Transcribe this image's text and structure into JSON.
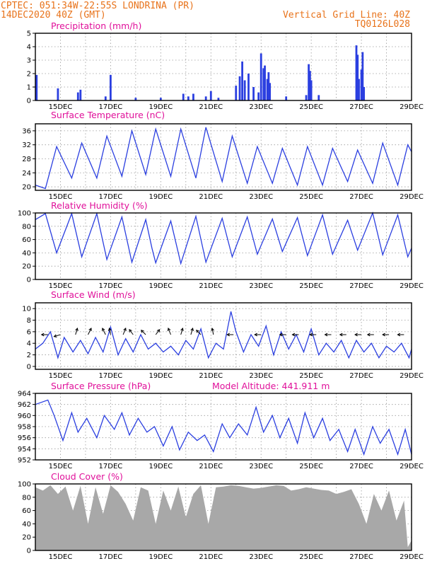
{
  "header": {
    "line1": "CPTEC:   051:34W-22:55S   LONDRINA (PR)",
    "line2_left": "14DEC2020 40Z (GMT)",
    "line2_right": "Vertical Grid Line: 40Z",
    "line3_right": "TQ0126L028"
  },
  "colors": {
    "series": "#2b3fe0",
    "cloud": "#a8a8a8",
    "header": "#e8731b",
    "title": "#e0109a"
  },
  "chart_data": [
    {
      "type": "bar",
      "title": "Precipitation (mm/h)",
      "x_ticks": [
        "15DEC",
        "17DEC",
        "19DEC",
        "21DEC",
        "23DEC",
        "25DEC",
        "27DEC",
        "29DEC"
      ],
      "xlim_days": [
        14.0,
        29.0
      ],
      "ylim": [
        0,
        5
      ],
      "y_ticks": [
        0,
        1,
        2,
        3,
        4,
        5
      ],
      "x": [
        14.05,
        14.9,
        15.7,
        15.8,
        16.8,
        17.0,
        18.0,
        19.0,
        19.9,
        20.1,
        20.3,
        20.8,
        21.0,
        21.3,
        22.0,
        22.15,
        22.25,
        22.35,
        22.5,
        22.7,
        22.9,
        23.0,
        23.1,
        23.15,
        23.25,
        23.3,
        23.35,
        24.0,
        24.8,
        24.9,
        24.95,
        25.0,
        25.3,
        26.8,
        26.85,
        26.9,
        27.0,
        27.05,
        27.1
      ],
      "values": [
        1.9,
        0.9,
        0.6,
        0.8,
        0.3,
        1.9,
        0.2,
        0.2,
        0.5,
        0.3,
        0.5,
        0.3,
        0.7,
        0.2,
        1.1,
        1.8,
        2.9,
        1.5,
        2.0,
        1.0,
        0.6,
        3.5,
        2.4,
        2.6,
        1.6,
        2.1,
        1.3,
        0.3,
        0.4,
        2.7,
        2.2,
        1.5,
        0.4,
        4.1,
        3.4,
        1.6,
        2.3,
        3.6,
        1.0
      ]
    },
    {
      "type": "line",
      "title": "Surface Temperature (nC)",
      "x_ticks": [
        "15DEC",
        "17DEC",
        "19DEC",
        "21DEC",
        "23DEC",
        "25DEC",
        "27DEC",
        "29DEC"
      ],
      "ylim": [
        19,
        38
      ],
      "y_ticks": [
        20,
        24,
        28,
        32,
        36
      ],
      "x": [
        14.0,
        14.4,
        14.85,
        15.45,
        15.85,
        16.45,
        16.85,
        17.45,
        17.85,
        18.4,
        18.8,
        19.4,
        19.8,
        20.4,
        20.8,
        21.45,
        21.85,
        22.45,
        22.85,
        23.45,
        23.85,
        24.45,
        24.85,
        25.45,
        25.85,
        26.45,
        26.85,
        27.45,
        27.85,
        28.45,
        28.85,
        29.0
      ],
      "values": [
        20.5,
        19.5,
        31.5,
        22.5,
        32.5,
        22.5,
        34.5,
        23.0,
        36.0,
        23.5,
        36.5,
        23.0,
        36.5,
        22.5,
        37.0,
        21.5,
        34.5,
        21.0,
        31.5,
        21.0,
        31.0,
        20.5,
        31.5,
        20.5,
        31.0,
        21.5,
        30.5,
        21.0,
        32.5,
        20.5,
        32.0,
        30.0
      ]
    },
    {
      "type": "line",
      "title": "Relative Humidity (%)",
      "x_ticks": [
        "15DEC",
        "17DEC",
        "19DEC",
        "21DEC",
        "23DEC",
        "25DEC",
        "27DEC",
        "29DEC"
      ],
      "ylim": [
        0,
        100
      ],
      "y_ticks": [
        0,
        20,
        40,
        60,
        80,
        100
      ],
      "x": [
        14.0,
        14.4,
        14.85,
        15.45,
        15.85,
        16.45,
        16.85,
        17.45,
        17.85,
        18.4,
        18.65,
        18.8,
        19.4,
        19.8,
        20.4,
        20.8,
        21.45,
        21.85,
        22.45,
        22.85,
        23.45,
        23.85,
        24.45,
        24.85,
        25.45,
        25.85,
        26.45,
        26.85,
        27.45,
        27.85,
        28.45,
        28.85,
        29.0
      ],
      "values": [
        90,
        99,
        40,
        99,
        34,
        99,
        30,
        94,
        26,
        90,
        47,
        25,
        88,
        24,
        95,
        26,
        92,
        34,
        94,
        38,
        91,
        42,
        93,
        36,
        97,
        38,
        89,
        44,
        100,
        37,
        97,
        34,
        47
      ]
    },
    {
      "type": "line",
      "title": "Surface Wind (m/s)",
      "x_ticks": [
        "15DEC",
        "17DEC",
        "19DEC",
        "21DEC",
        "23DEC",
        "25DEC",
        "27DEC",
        "29DEC"
      ],
      "ylim": [
        -0.5,
        11
      ],
      "y_ticks": [
        0,
        2,
        4,
        6,
        8,
        10
      ],
      "x": [
        14.0,
        14.3,
        14.6,
        14.9,
        15.15,
        15.5,
        15.8,
        16.1,
        16.4,
        16.7,
        17.0,
        17.3,
        17.6,
        17.9,
        18.2,
        18.5,
        18.8,
        19.1,
        19.4,
        19.7,
        20.0,
        20.3,
        20.6,
        20.9,
        21.2,
        21.5,
        21.8,
        22.0,
        22.3,
        22.6,
        22.9,
        23.2,
        23.5,
        23.8,
        24.1,
        24.4,
        24.7,
        25.0,
        25.3,
        25.6,
        25.9,
        26.2,
        26.5,
        26.8,
        27.1,
        27.4,
        27.7,
        28.0,
        28.3,
        28.6,
        28.9,
        29.0
      ],
      "values": [
        3.0,
        4.0,
        6.0,
        1.5,
        5.0,
        2.5,
        4.5,
        2.2,
        5.0,
        2.5,
        6.8,
        2.0,
        4.8,
        2.5,
        5.5,
        3.0,
        4.0,
        2.5,
        3.5,
        2.0,
        4.5,
        3.0,
        6.5,
        1.5,
        4.0,
        3.0,
        9.5,
        6.0,
        2.5,
        5.5,
        3.5,
        7.0,
        2.0,
        6.0,
        3.0,
        5.5,
        2.5,
        6.5,
        2.0,
        4.0,
        2.5,
        4.5,
        1.5,
        4.5,
        2.5,
        4.0,
        1.5,
        3.5,
        2.5,
        4.0,
        1.5,
        3.0
      ]
    },
    {
      "type": "line",
      "title": "Surface Pressure (hPa)",
      "annotation": "Model Altitude: 441.911 m",
      "x_ticks": [
        "15DEC",
        "17DEC",
        "19DEC",
        "21DEC",
        "23DEC",
        "25DEC",
        "27DEC",
        "29DEC"
      ],
      "ylim": [
        952,
        964
      ],
      "y_ticks": [
        952,
        954,
        956,
        958,
        960,
        962,
        964
      ],
      "x": [
        14.0,
        14.5,
        14.75,
        15.1,
        15.45,
        15.7,
        16.05,
        16.45,
        16.75,
        17.15,
        17.45,
        17.75,
        18.1,
        18.45,
        18.75,
        19.1,
        19.45,
        19.75,
        20.1,
        20.45,
        20.75,
        21.1,
        21.45,
        21.75,
        22.1,
        22.45,
        22.8,
        23.1,
        23.45,
        23.75,
        24.1,
        24.45,
        24.75,
        25.1,
        25.45,
        25.75,
        26.1,
        26.45,
        26.75,
        27.1,
        27.45,
        27.75,
        28.1,
        28.45,
        28.75,
        29.0
      ],
      "values": [
        962.0,
        962.8,
        960.0,
        955.5,
        960.5,
        957.0,
        959.5,
        956.0,
        960.0,
        957.5,
        960.5,
        956.5,
        959.5,
        957.0,
        958.0,
        954.5,
        958.0,
        953.8,
        957.0,
        955.5,
        956.5,
        953.5,
        958.5,
        956.0,
        958.5,
        956.5,
        961.5,
        957.0,
        960.0,
        956.0,
        959.5,
        955.0,
        960.5,
        956.0,
        959.5,
        955.5,
        957.5,
        953.5,
        957.5,
        953.0,
        958.0,
        955.0,
        957.5,
        953.0,
        957.5,
        953.0
      ]
    },
    {
      "type": "area",
      "title": "Cloud Cover (%)",
      "x_ticks": [
        "15DEC",
        "17DEC",
        "19DEC",
        "21DEC",
        "23DEC",
        "25DEC",
        "27DEC",
        "29DEC"
      ],
      "ylim": [
        0,
        100
      ],
      "y_ticks": [
        0,
        20,
        40,
        60,
        80,
        100
      ],
      "x": [
        14.0,
        14.3,
        14.6,
        14.9,
        15.2,
        15.5,
        15.8,
        16.1,
        16.4,
        16.7,
        17.0,
        17.3,
        17.6,
        17.9,
        18.2,
        18.5,
        18.8,
        19.1,
        19.4,
        19.7,
        20.0,
        20.3,
        20.6,
        20.9,
        21.2,
        21.5,
        21.8,
        22.1,
        22.4,
        22.7,
        23.0,
        23.3,
        23.6,
        23.9,
        24.2,
        24.5,
        24.8,
        25.1,
        25.4,
        25.7,
        26.0,
        26.3,
        26.6,
        26.9,
        27.2,
        27.5,
        27.8,
        28.1,
        28.4,
        28.7,
        28.85,
        29.0
      ],
      "values": [
        95,
        90,
        98,
        85,
        96,
        60,
        97,
        40,
        95,
        55,
        98,
        88,
        70,
        45,
        95,
        90,
        40,
        90,
        60,
        96,
        50,
        85,
        98,
        40,
        95,
        96,
        98,
        97,
        95,
        93,
        94,
        96,
        98,
        97,
        90,
        92,
        95,
        93,
        91,
        90,
        85,
        88,
        92,
        70,
        40,
        85,
        60,
        90,
        45,
        75,
        5,
        15
      ]
    }
  ]
}
